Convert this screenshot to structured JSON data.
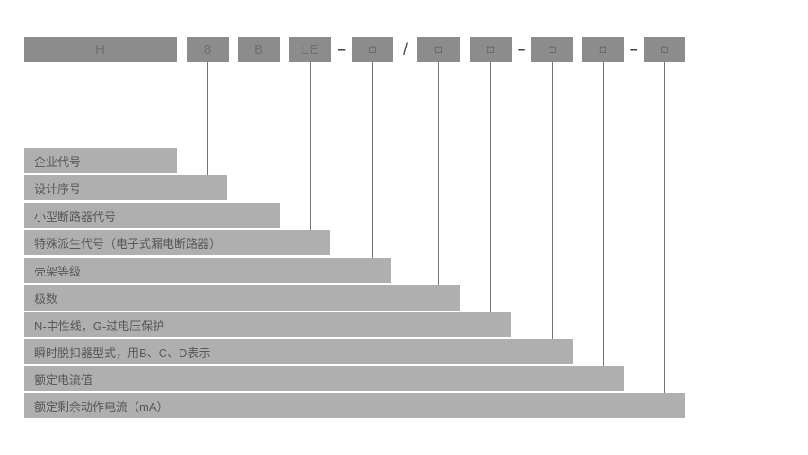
{
  "code": {
    "segments": [
      {
        "type": "box",
        "text": "H"
      },
      {
        "type": "box",
        "text": "8"
      },
      {
        "type": "box",
        "text": "B"
      },
      {
        "type": "box",
        "text": "LE"
      },
      {
        "type": "separator",
        "text": "–"
      },
      {
        "type": "box",
        "text": "□"
      },
      {
        "type": "separator",
        "text": "/"
      },
      {
        "type": "box",
        "text": "□"
      },
      {
        "type": "box",
        "text": "□"
      },
      {
        "type": "separator",
        "text": "–"
      },
      {
        "type": "box",
        "text": "□"
      },
      {
        "type": "box",
        "text": "□"
      },
      {
        "type": "separator",
        "text": "–"
      },
      {
        "type": "box",
        "text": "□"
      }
    ]
  },
  "legend": {
    "rows": [
      {
        "label": "企业代号"
      },
      {
        "label": "设计序号"
      },
      {
        "label": "小型断路器代号"
      },
      {
        "label": "特殊派生代号（电子式漏电断路器）"
      },
      {
        "label": "壳架等级"
      },
      {
        "label": "极数"
      },
      {
        "label": "N-中性线，G-过电压保护"
      },
      {
        "label": "瞬时脱扣器型式，用B、C、D表示"
      },
      {
        "label": "额定电流值"
      },
      {
        "label": "额定剩余动作电流（mA）"
      }
    ]
  },
  "colors": {
    "code_box_bg": "#8c8c8c",
    "legend_bar_bg": "#afafaf",
    "connector_line": "#757575",
    "legend_text": "#585858",
    "code_letter": "#6f6f6f",
    "separator_text": "#3f3f3f",
    "background": "#ffffff"
  }
}
